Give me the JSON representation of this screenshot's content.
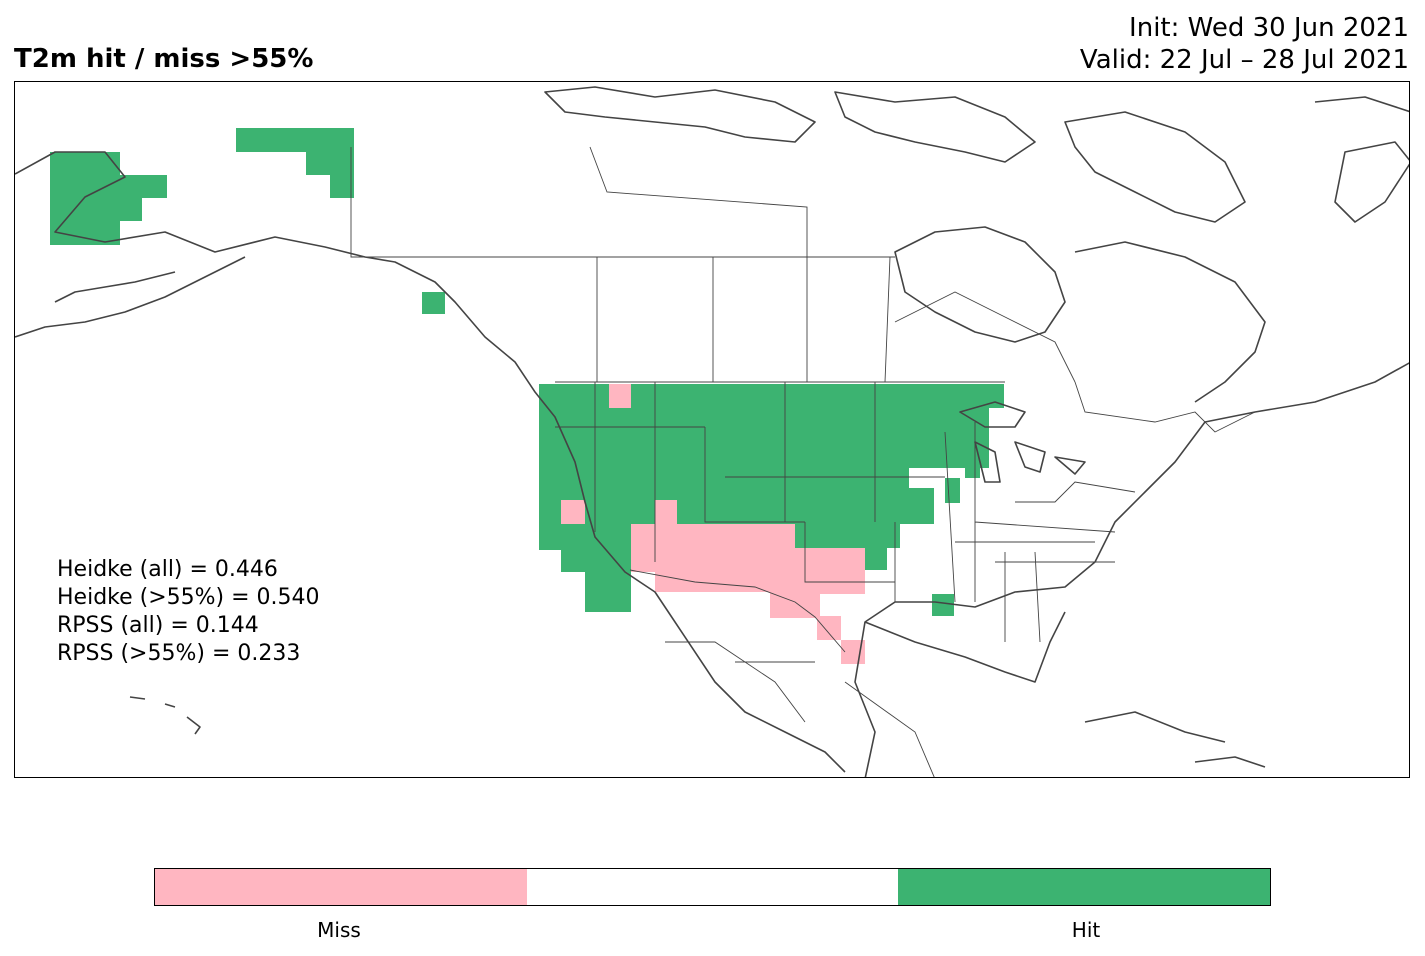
{
  "title": "T2m hit / miss  >55%",
  "init_label": "Init: Wed 30 Jun 2021",
  "valid_label": "Valid: 22 Jul – 28 Jul 2021",
  "scores": [
    "Heidke (all) = 0.446",
    "Heidke (>55%) = 0.540",
    "RPSS (all) = 0.144",
    "RPSS (>55%) = 0.233"
  ],
  "colors": {
    "miss": "#ffb6c1",
    "neutral": "#ffffff",
    "hit": "#3cb371",
    "coast": "#444444"
  },
  "colorbar": {
    "labels": [
      "Miss",
      "Hit"
    ]
  }
}
